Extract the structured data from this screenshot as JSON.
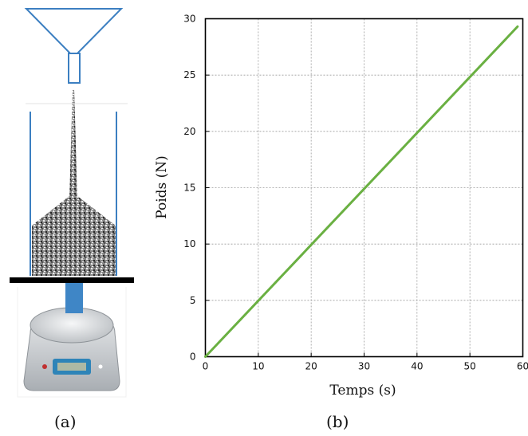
{
  "captions": {
    "left": "(a)",
    "right": "(b)"
  },
  "left_panel": {
    "devices": [
      "funnel",
      "glass-column",
      "granular-pile",
      "plate",
      "digital-scale"
    ],
    "colors": {
      "outline": "#3c7fc1",
      "column": "#3c7fc1",
      "plate": "#000000",
      "connector": "#3f86c6",
      "scale_body": "#c8ccd0",
      "display": "#2e84b8"
    }
  },
  "chart_data": {
    "type": "line",
    "xlabel": "Temps (s)",
    "ylabel": "Poids (N)",
    "xlim": [
      0,
      60
    ],
    "ylim": [
      0,
      30
    ],
    "xticks": [
      0,
      10,
      20,
      30,
      40,
      50,
      60
    ],
    "yticks": [
      0,
      5,
      10,
      15,
      20,
      25,
      30
    ],
    "grid": true,
    "series": [
      {
        "color": "#6ab042",
        "x": [
          0,
          59
        ],
        "y": [
          0,
          29.3
        ]
      }
    ]
  }
}
